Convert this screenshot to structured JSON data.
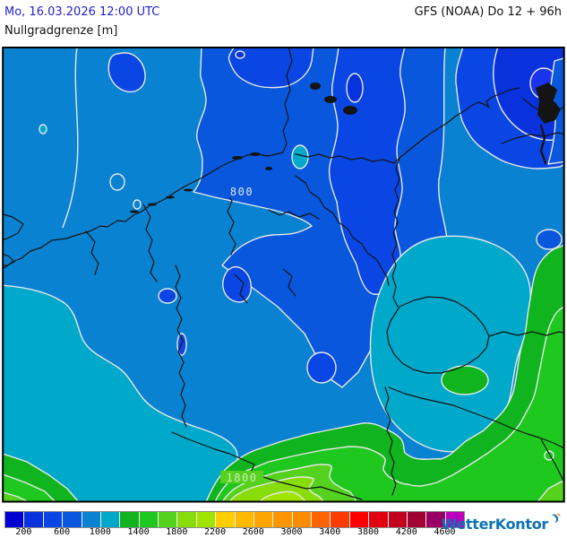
{
  "header": {
    "run_datetime": "Mo, 16.03.2026 12:00 UTC",
    "model_info": "GFS (NOAA) Do 12 + 96h",
    "parameter_title": "Nullgradgrenze [m]"
  },
  "map": {
    "contour_labels": {
      "north": "800",
      "south": "1800"
    }
  },
  "legend": {
    "tick_labels": [
      "200",
      "600",
      "1000",
      "1400",
      "1800",
      "2200",
      "2600",
      "3000",
      "3400",
      "3800",
      "4200",
      "4600"
    ],
    "band_colors": [
      "#0000D2",
      "#0A32DC",
      "#0A46E4",
      "#0857DC",
      "#0A82D2",
      "#00A8CA",
      "#0FB41E",
      "#1EC81E",
      "#55D21E",
      "#87DC0A",
      "#A0E400",
      "#FFCD00",
      "#FFB900",
      "#FFA500",
      "#FF9600",
      "#FF8C00",
      "#FF6400",
      "#FF3C00",
      "#FF0000",
      "#E1000F",
      "#C2001E",
      "#A00032",
      "#990066",
      "#BB00BB"
    ]
  },
  "brand": {
    "name": "WetterKontor"
  },
  "accent_colors": {
    "date_blue": "#2222CC",
    "brand_blue": "#0C74B2"
  }
}
